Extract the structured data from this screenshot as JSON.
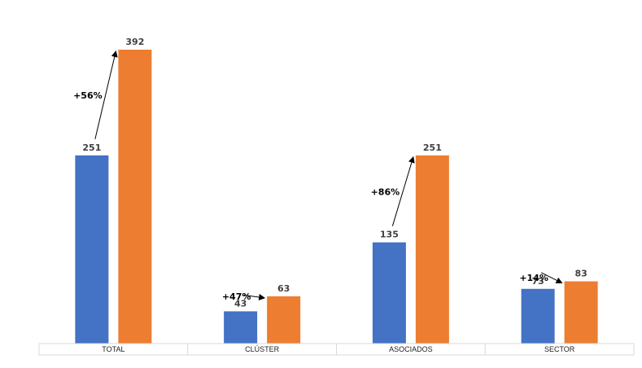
{
  "chart_data": {
    "type": "bar",
    "categories": [
      "TOTAL",
      "CLÚSTER",
      "ASOCIADOS",
      "SECTOR"
    ],
    "series": [
      {
        "color": "#4472C4",
        "values": [
          251,
          43,
          135,
          73
        ]
      },
      {
        "color": "#ED7D31",
        "values": [
          392,
          63,
          251,
          83
        ]
      }
    ],
    "annotations": [
      "+56%",
      "+47%",
      "+86%",
      "+14%"
    ],
    "ylim": [
      0,
      392
    ],
    "grid": false,
    "legend": "none"
  }
}
